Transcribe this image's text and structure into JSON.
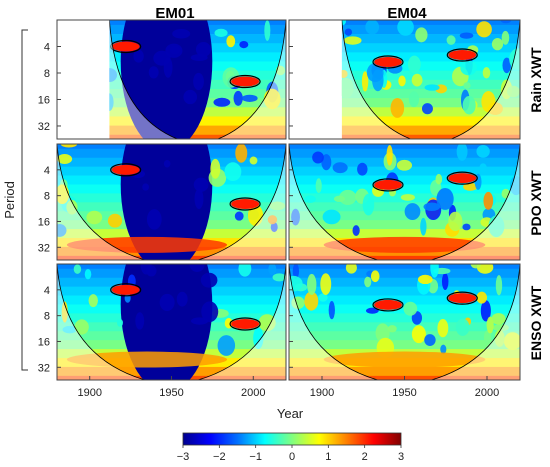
{
  "chart_data": {
    "type": "heatmap",
    "title": "",
    "columns": [
      "EM01",
      "EM04"
    ],
    "rows": [
      "Rain XWT",
      "PDO XWT",
      "ENSO XWT"
    ],
    "xlabel": "Year",
    "ylabel": "Period",
    "x_ticks": [
      "1900",
      "1950",
      "2000"
    ],
    "y_ticks": [
      "4",
      "8",
      "16",
      "32"
    ],
    "xlim": [
      1880,
      2020
    ],
    "ylim": [
      2,
      45
    ],
    "y_scale": "log2",
    "colorbar": {
      "min": -3,
      "max": 3,
      "ticks": [
        "−3",
        "−2",
        "−1",
        "0",
        "1",
        "2",
        "3"
      ],
      "colormap": "jet"
    },
    "panels": [
      {
        "column": "EM01",
        "row": "Rain XWT",
        "data_start_year": 1912
      },
      {
        "column": "EM04",
        "row": "Rain XWT",
        "data_start_year": 1912
      },
      {
        "column": "EM01",
        "row": "PDO XWT",
        "data_start_year": 1880
      },
      {
        "column": "EM04",
        "row": "PDO XWT",
        "data_start_year": 1880
      },
      {
        "column": "EM01",
        "row": "ENSO XWT",
        "data_start_year": 1880
      },
      {
        "column": "EM04",
        "row": "ENSO XWT",
        "data_start_year": 1880
      }
    ]
  }
}
